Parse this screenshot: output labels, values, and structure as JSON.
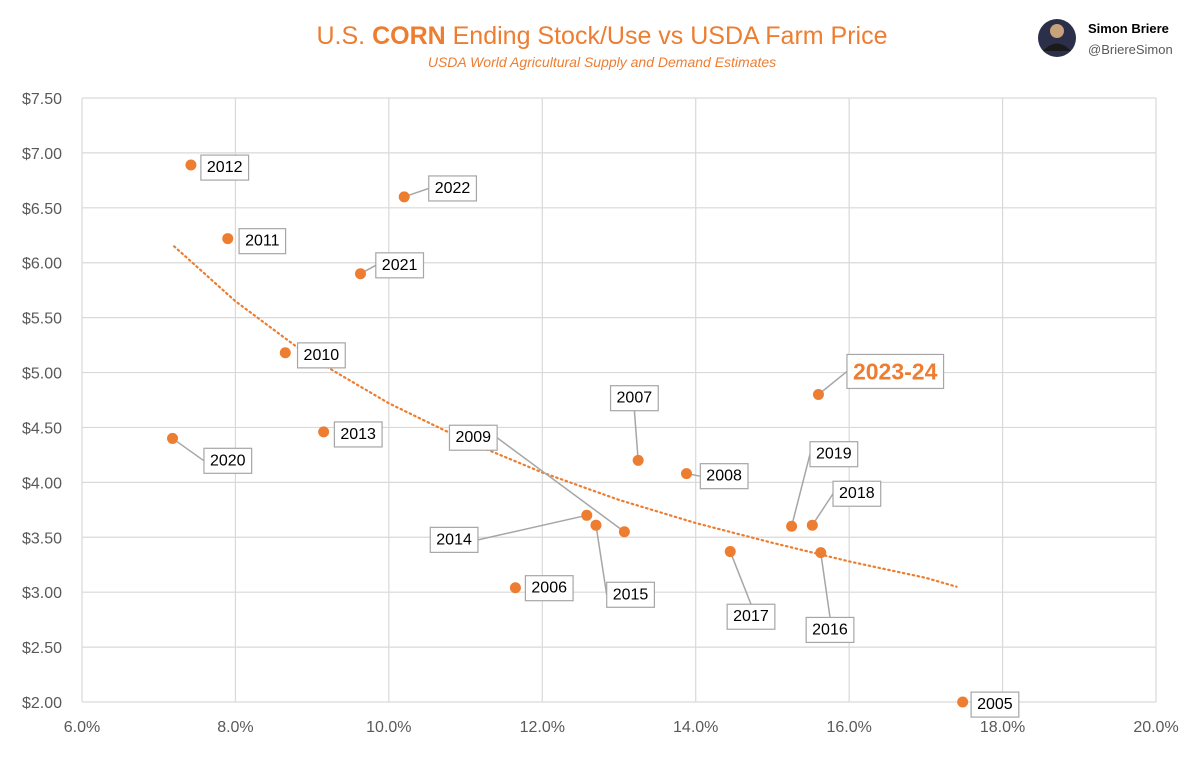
{
  "header": {
    "title_prefix": "U.S. ",
    "title_bold": "CORN",
    "title_suffix": " Ending Stock/Use vs USDA Farm Price",
    "subtitle": "USDA World Agricultural Supply and Demand Estimates"
  },
  "author": {
    "name": "Simon Briere",
    "handle": "@BriereSimon"
  },
  "colors": {
    "accent": "#ED7D31",
    "grid": "#D9D9D9",
    "label_border": "#A6A6A6",
    "leader": "#A6A6A6"
  },
  "chart_data": {
    "type": "scatter",
    "title": "U.S. CORN Ending Stock/Use vs USDA Farm Price",
    "subtitle": "USDA World Agricultural Supply and Demand Estimates",
    "xlabel": "",
    "ylabel": "",
    "xlim": [
      6.0,
      20.0
    ],
    "ylim": [
      2.0,
      7.5
    ],
    "x_ticks": [
      6,
      8,
      10,
      12,
      14,
      16,
      18,
      20
    ],
    "x_tick_labels": [
      "6.0%",
      "8.0%",
      "10.0%",
      "12.0%",
      "14.0%",
      "16.0%",
      "18.0%",
      "20.0%"
    ],
    "y_ticks": [
      2.0,
      2.5,
      3.0,
      3.5,
      4.0,
      4.5,
      5.0,
      5.5,
      6.0,
      6.5,
      7.0,
      7.5
    ],
    "y_tick_labels": [
      "$2.00",
      "$2.50",
      "$3.00",
      "$3.50",
      "$4.00",
      "$4.50",
      "$5.00",
      "$5.50",
      "$6.00",
      "$6.50",
      "$7.00",
      "$7.50"
    ],
    "grid": true,
    "trendline": {
      "style": "dotted",
      "points": [
        {
          "x": 7.2,
          "y": 6.15
        },
        {
          "x": 8.0,
          "y": 5.65
        },
        {
          "x": 9.0,
          "y": 5.13
        },
        {
          "x": 10.0,
          "y": 4.72
        },
        {
          "x": 11.0,
          "y": 4.38
        },
        {
          "x": 12.0,
          "y": 4.09
        },
        {
          "x": 13.0,
          "y": 3.84
        },
        {
          "x": 14.0,
          "y": 3.63
        },
        {
          "x": 15.0,
          "y": 3.45
        },
        {
          "x": 16.0,
          "y": 3.28
        },
        {
          "x": 17.0,
          "y": 3.13
        },
        {
          "x": 17.4,
          "y": 3.05
        }
      ]
    },
    "points": [
      {
        "label": "2005",
        "x": 17.48,
        "y": 2.0,
        "lx": 17.9,
        "ly": 1.99
      },
      {
        "label": "2006",
        "x": 11.65,
        "y": 3.04,
        "lx": 12.09,
        "ly": 3.05
      },
      {
        "label": "2007",
        "x": 13.25,
        "y": 4.2,
        "lx": 13.2,
        "ly": 4.78
      },
      {
        "label": "2008",
        "x": 13.88,
        "y": 4.08,
        "lx": 14.37,
        "ly": 4.07
      },
      {
        "label": "2009",
        "x": 13.07,
        "y": 3.55,
        "lx": 11.1,
        "ly": 4.42
      },
      {
        "label": "2010",
        "x": 8.65,
        "y": 5.18,
        "lx": 9.12,
        "ly": 5.17
      },
      {
        "label": "2011",
        "x": 7.9,
        "y": 6.22,
        "lx": 8.35,
        "ly": 6.21
      },
      {
        "label": "2012",
        "x": 7.42,
        "y": 6.89,
        "lx": 7.86,
        "ly": 6.88
      },
      {
        "label": "2013",
        "x": 9.15,
        "y": 4.46,
        "lx": 9.6,
        "ly": 4.45
      },
      {
        "label": "2014",
        "x": 12.58,
        "y": 3.7,
        "lx": 10.85,
        "ly": 3.49
      },
      {
        "label": "2015",
        "x": 12.7,
        "y": 3.61,
        "lx": 13.15,
        "ly": 2.99
      },
      {
        "label": "2016",
        "x": 15.63,
        "y": 3.36,
        "lx": 15.75,
        "ly": 2.67
      },
      {
        "label": "2017",
        "x": 14.45,
        "y": 3.37,
        "lx": 14.72,
        "ly": 2.79
      },
      {
        "label": "2018",
        "x": 15.52,
        "y": 3.61,
        "lx": 16.1,
        "ly": 3.91
      },
      {
        "label": "2019",
        "x": 15.25,
        "y": 3.6,
        "lx": 15.8,
        "ly": 4.27
      },
      {
        "label": "2020",
        "x": 7.18,
        "y": 4.4,
        "lx": 7.9,
        "ly": 4.21
      },
      {
        "label": "2021",
        "x": 9.63,
        "y": 5.9,
        "lx": 10.14,
        "ly": 5.99
      },
      {
        "label": "2022",
        "x": 10.2,
        "y": 6.6,
        "lx": 10.83,
        "ly": 6.69
      },
      {
        "label": "2023-24",
        "x": 15.6,
        "y": 4.8,
        "lx": 16.6,
        "ly": 5.01,
        "highlight": true
      }
    ]
  }
}
